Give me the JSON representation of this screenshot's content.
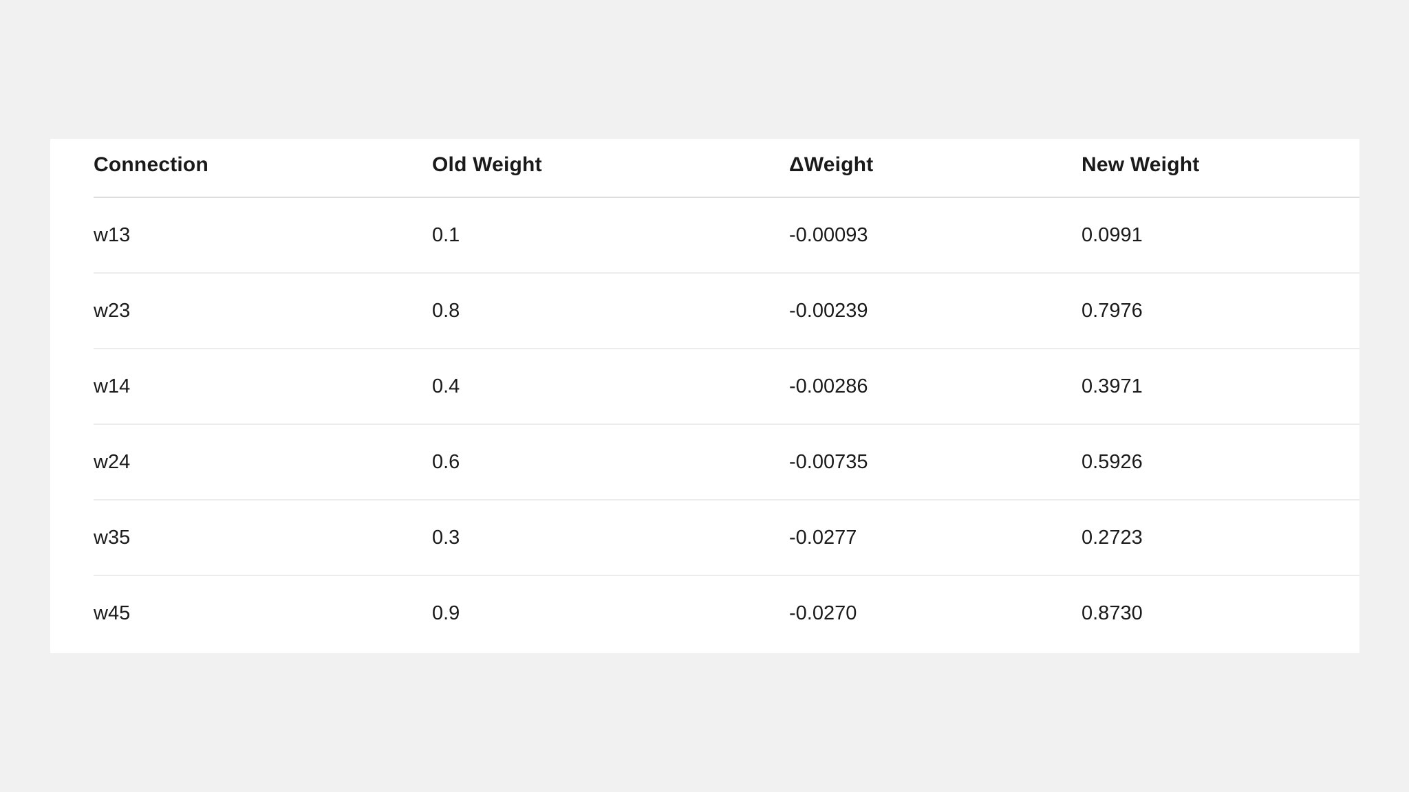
{
  "table": {
    "columns": [
      "Connection",
      "Old Weight",
      "ΔWeight",
      "New Weight"
    ],
    "rows": [
      [
        "w13",
        "0.1",
        "-0.00093",
        "0.0991"
      ],
      [
        "w23",
        "0.8",
        "-0.00239",
        "0.7976"
      ],
      [
        "w14",
        "0.4",
        "-0.00286",
        "0.3971"
      ],
      [
        "w24",
        "0.6",
        "-0.00735",
        "0.5926"
      ],
      [
        "w35",
        "0.3",
        "-0.0277",
        "0.2723"
      ],
      [
        "w45",
        "0.9",
        "-0.0270",
        "0.8730"
      ]
    ]
  },
  "colors": {
    "page_background": "#f1f1f1",
    "card_background": "#ffffff",
    "text": "#1a1a1a",
    "header_divider": "#dcdcdc",
    "row_divider": "#ececec"
  }
}
